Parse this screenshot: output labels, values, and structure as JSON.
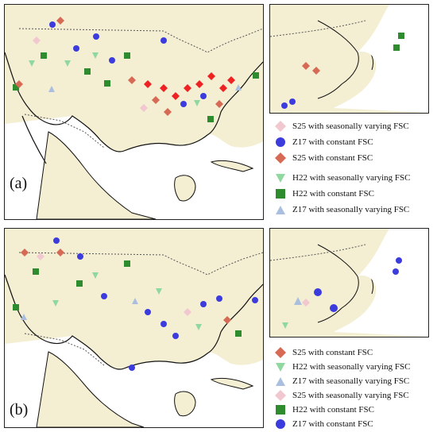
{
  "colors": {
    "land": "#f4efd3",
    "water": "#ffffff",
    "coast": "#111111",
    "border": "#555555",
    "s25_constant": "#d66a55",
    "z17_constant": "#3c3cde",
    "s25_seasonal": "#f2c8d0",
    "h22_seasonal": "#8fd9a0",
    "h22_constant": "#2e8b2e",
    "z17_seasonal": "#aabfe0",
    "highlight_red": "#ee2222"
  },
  "panels": {
    "a": {
      "label": "(a)",
      "legend": [
        {
          "text": "S25 with seasonally varying FSC",
          "symbol": "diamond",
          "color_key": "s25_seasonal"
        },
        {
          "text": "Z17 with constant FSC",
          "symbol": "circle",
          "color_key": "z17_constant"
        },
        {
          "text": "S25 with constant FSC",
          "symbol": "diamond",
          "color_key": "s25_constant"
        },
        {
          "text": "H22 with seasonally varying FSC",
          "symbol": "triangle-down",
          "color_key": "h22_seasonal"
        },
        {
          "text": "H22 with constant FSC",
          "symbol": "square",
          "color_key": "h22_constant"
        },
        {
          "text": "Z17 with seasonally varying FSC",
          "symbol": "triangle-up",
          "color_key": "z17_seasonal"
        }
      ]
    },
    "b": {
      "label": "(b)",
      "legend": [
        {
          "text": "S25 with constant FSC",
          "symbol": "diamond",
          "color_key": "s25_constant"
        },
        {
          "text": "H22 with seasonally varying FSC",
          "symbol": "triangle-down",
          "color_key": "h22_seasonal"
        },
        {
          "text": "Z17 with seasonally varying FSC",
          "symbol": "triangle-up",
          "color_key": "z17_seasonal"
        },
        {
          "text": "S25 with seasonally varying FSC",
          "symbol": "diamond",
          "color_key": "s25_seasonal"
        },
        {
          "text": "H22 with constant FSC",
          "symbol": "square",
          "color_key": "h22_constant"
        },
        {
          "text": "Z17 with constant FSC",
          "symbol": "circle",
          "color_key": "z17_constant"
        }
      ]
    }
  }
}
